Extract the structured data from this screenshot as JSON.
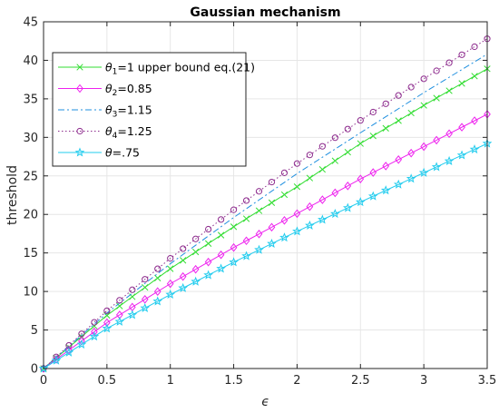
{
  "chart_data": {
    "type": "line",
    "title": "Gaussian mechanism",
    "xlabel": "ϵ",
    "ylabel": "threshold",
    "xlim": [
      0,
      3.5
    ],
    "ylim": [
      0,
      45
    ],
    "xticks": [
      "0",
      "0.5",
      "1",
      "1.5",
      "2",
      "2.5",
      "3",
      "3.5"
    ],
    "yticks": [
      "0",
      "5",
      "10",
      "15",
      "20",
      "25",
      "30",
      "35",
      "40",
      "45"
    ],
    "grid": true,
    "legend_position": "top-left",
    "x_sampling": {
      "start": 0,
      "end": 3.5,
      "count": 36
    },
    "series": [
      {
        "name": "θ1=1 upper bound eq.(21)",
        "legend_parts": {
          "sym": "θ",
          "sub": "1",
          "rest": "=1 upper bound eq.(21)"
        },
        "color": "#33dd33",
        "line_style": "solid",
        "marker": "x",
        "values_at_x": {
          "0": 0,
          "0.5": 6.9,
          "1": 12.95,
          "1.5": 18.4,
          "2": 23.6,
          "2.5": 29.2,
          "3": 34.15,
          "3.5": 38.9
        }
      },
      {
        "name": "θ2=0.85",
        "legend_parts": {
          "sym": "θ",
          "sub": "2",
          "rest": "=0.85"
        },
        "color": "#ee22ee",
        "line_style": "solid",
        "marker": "diamond",
        "values_at_x": {
          "0": 0,
          "0.5": 5.95,
          "1": 11.0,
          "1.5": 15.7,
          "2": 20.1,
          "2.5": 24.6,
          "3": 28.8,
          "3.5": 33.0
        }
      },
      {
        "name": "θ3=1.15",
        "legend_parts": {
          "sym": "θ",
          "sub": "3",
          "rest": "=1.15"
        },
        "color": "#1f8fdf",
        "line_style": "dashdot",
        "marker": "none",
        "values_at_x": {
          "0": 0,
          "0.5": 7.2,
          "1": 13.6,
          "1.5": 19.6,
          "2": 25.3,
          "2.5": 30.6,
          "3": 35.8,
          "3.5": 40.8
        }
      },
      {
        "name": "θ4=1.25",
        "legend_parts": {
          "sym": "θ",
          "sub": "4",
          "rest": "=1.25"
        },
        "color": "#8e2d8e",
        "line_style": "dotted",
        "marker": "circle",
        "values_at_x": {
          "0": 0,
          "0.5": 7.5,
          "1": 14.3,
          "1.5": 20.6,
          "2": 26.6,
          "2.5": 32.2,
          "3": 37.6,
          "3.5": 42.8
        }
      },
      {
        "name": "θ=.75",
        "legend_parts": {
          "sym": "θ",
          "sub": "",
          "rest": "=.75"
        },
        "color": "#22ccee",
        "line_style": "solid",
        "marker": "star",
        "values_at_x": {
          "0": 0,
          "0.5": 5.2,
          "1": 9.6,
          "1.5": 13.8,
          "2": 17.8,
          "2.5": 21.6,
          "3": 25.4,
          "3.5": 29.2
        }
      }
    ]
  }
}
